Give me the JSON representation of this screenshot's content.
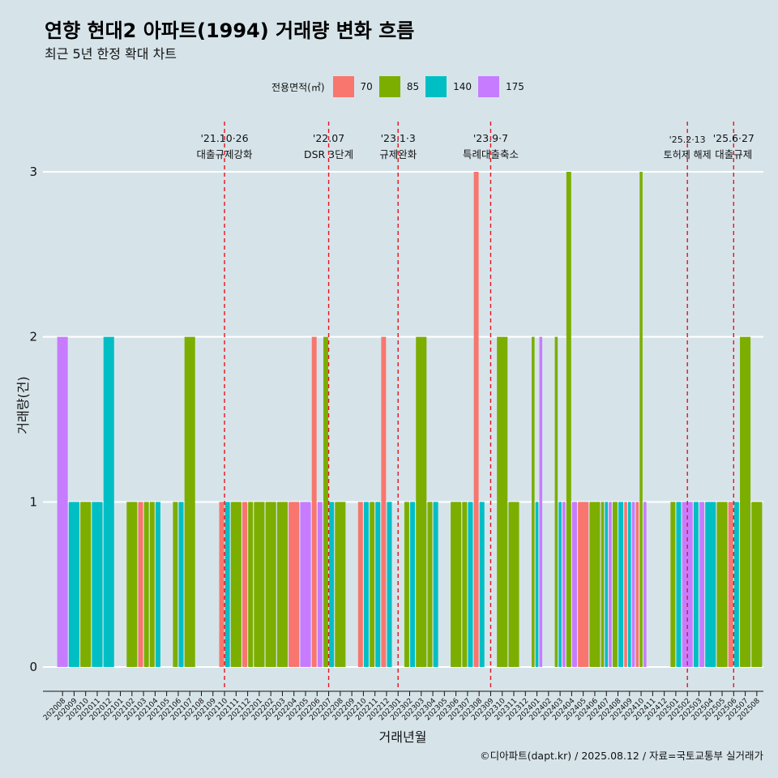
{
  "chart_data": {
    "type": "bar",
    "title": "연향 현대2 아파트(1994) 거래량 변화 흐름",
    "subtitle": "최근 5년 한정 확대 차트",
    "xlabel": "거래년월",
    "ylabel": "거래량(건)",
    "ylim": [
      0,
      3
    ],
    "yticks": [
      0,
      1,
      2,
      3
    ],
    "grid": true,
    "legend_position": "top",
    "legend": {
      "title": "전용면적(㎡)",
      "items": [
        {
          "name": "70",
          "color": "#f8766d"
        },
        {
          "name": "85",
          "color": "#7cae00"
        },
        {
          "name": "140",
          "color": "#00bfc4"
        },
        {
          "name": "175",
          "color": "#c77cff"
        }
      ]
    },
    "categories": [
      "202008",
      "202009",
      "202010",
      "202011",
      "202012",
      "202101",
      "202102",
      "202103",
      "202104",
      "202105",
      "202106",
      "202107",
      "202108",
      "202109",
      "202110",
      "202111",
      "202112",
      "202201",
      "202202",
      "202203",
      "202204",
      "202205",
      "202206",
      "202207",
      "202208",
      "202209",
      "202210",
      "202211",
      "202212",
      "202301",
      "202302",
      "202303",
      "202304",
      "202305",
      "202306",
      "202307",
      "202308",
      "202309",
      "202310",
      "202311",
      "202312",
      "202401",
      "202402",
      "202403",
      "202404",
      "202405",
      "202406",
      "202407",
      "202408",
      "202409",
      "202410",
      "202411",
      "202412",
      "202501",
      "202502",
      "202503",
      "202504",
      "202505",
      "202506",
      "202507",
      "202508"
    ],
    "series": [
      {
        "name": "70",
        "values": [
          0,
          0,
          0,
          0,
          0,
          0,
          0,
          1,
          0,
          0,
          0,
          0,
          0,
          0,
          1,
          0,
          1,
          0,
          0,
          0,
          1,
          0,
          2,
          0,
          0,
          0,
          1,
          0,
          2,
          0,
          0,
          0,
          0,
          0,
          0,
          0,
          3,
          0,
          0,
          0,
          0,
          0,
          0,
          0,
          0,
          1,
          0,
          0,
          0,
          1,
          1,
          0,
          0,
          0,
          0,
          0,
          0,
          0,
          1,
          0,
          0
        ]
      },
      {
        "name": "85",
        "values": [
          0,
          0,
          1,
          0,
          0,
          0,
          1,
          1,
          1,
          0,
          1,
          2,
          0,
          0,
          0,
          1,
          1,
          1,
          1,
          1,
          0,
          0,
          0,
          2,
          1,
          0,
          0,
          1,
          0,
          0,
          1,
          2,
          1,
          0,
          1,
          1,
          0,
          0,
          2,
          1,
          0,
          2,
          0,
          2,
          3,
          0,
          1,
          1,
          1,
          0,
          3,
          0,
          0,
          1,
          0,
          0,
          0,
          1,
          0,
          2,
          1
        ]
      },
      {
        "name": "140",
        "values": [
          0,
          1,
          0,
          1,
          2,
          0,
          0,
          0,
          1,
          0,
          1,
          0,
          0,
          0,
          1,
          0,
          0,
          0,
          0,
          0,
          0,
          0,
          0,
          1,
          0,
          0,
          1,
          1,
          1,
          0,
          1,
          0,
          1,
          0,
          0,
          1,
          1,
          0,
          0,
          0,
          0,
          1,
          0,
          1,
          0,
          0,
          0,
          1,
          1,
          1,
          0,
          0,
          0,
          1,
          0,
          1,
          1,
          0,
          1,
          0,
          0
        ]
      },
      {
        "name": "175",
        "values": [
          2,
          0,
          0,
          0,
          0,
          0,
          0,
          0,
          0,
          0,
          0,
          0,
          0,
          0,
          0,
          0,
          0,
          0,
          0,
          0,
          0,
          1,
          1,
          0,
          0,
          0,
          0,
          0,
          0,
          0,
          0,
          0,
          0,
          0,
          0,
          0,
          0,
          0,
          0,
          0,
          0,
          2,
          0,
          1,
          1,
          0,
          0,
          1,
          0,
          1,
          1,
          0,
          0,
          0,
          1,
          1,
          0,
          0,
          0,
          0,
          0
        ]
      }
    ],
    "events": [
      {
        "date": "'21.10·26",
        "text": "대출규제강화",
        "x": "202110"
      },
      {
        "date": "'22.07",
        "text": "DSR 3단계",
        "x": "202207"
      },
      {
        "date": "'23.1·3",
        "text": "규제완화",
        "x": "202301"
      },
      {
        "date": "'23.9·7",
        "text": "특례대출축소",
        "x": "202309"
      },
      {
        "date": "'25.2·13",
        "text": "토허제 해제",
        "x": "202502"
      },
      {
        "date": "'25.6·27",
        "text": "대출규제",
        "x": "202506"
      }
    ]
  },
  "caption": "©디아파트(dapt.kr) / 2025.08.12 / 자료=국토교통부 실거래가"
}
